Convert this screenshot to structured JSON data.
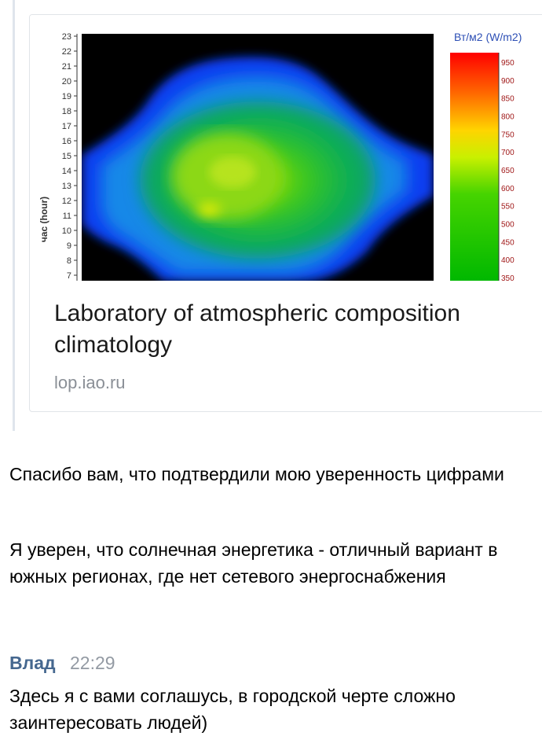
{
  "link_preview": {
    "title": "Laboratory of atmospheric composition climatology",
    "domain": "lop.iao.ru",
    "image": {
      "y_axis_label": "час (hour)",
      "y_ticks": [
        "7",
        "8",
        "9",
        "10",
        "11",
        "12",
        "13",
        "14",
        "15",
        "16",
        "17",
        "18",
        "19",
        "20",
        "21",
        "22",
        "23"
      ],
      "legend_title": "Вт/м2 (W/m2)",
      "legend_ticks": [
        "350",
        "400",
        "450",
        "500",
        "550",
        "600",
        "650",
        "700",
        "750",
        "800",
        "850",
        "900",
        "950"
      ],
      "colors": {
        "high": "#ff0000",
        "mid_high": "#ffff00",
        "mid": "#00c000",
        "low": "#0040ff",
        "background": "#000000"
      }
    }
  },
  "messages": [
    {
      "text": "Спасибо вам, что подтвердили мою уверенность цифрами"
    },
    {
      "text": "Я уверен, что солнечная энергетика - отличный вариант в южных регионах, где нет сетевого энергоснабжения"
    }
  ],
  "reply": {
    "author": "Влад",
    "time": "22:29",
    "text": "Здесь я с вами соглашусь, в городской черте сложно заинтересовать людей)"
  }
}
